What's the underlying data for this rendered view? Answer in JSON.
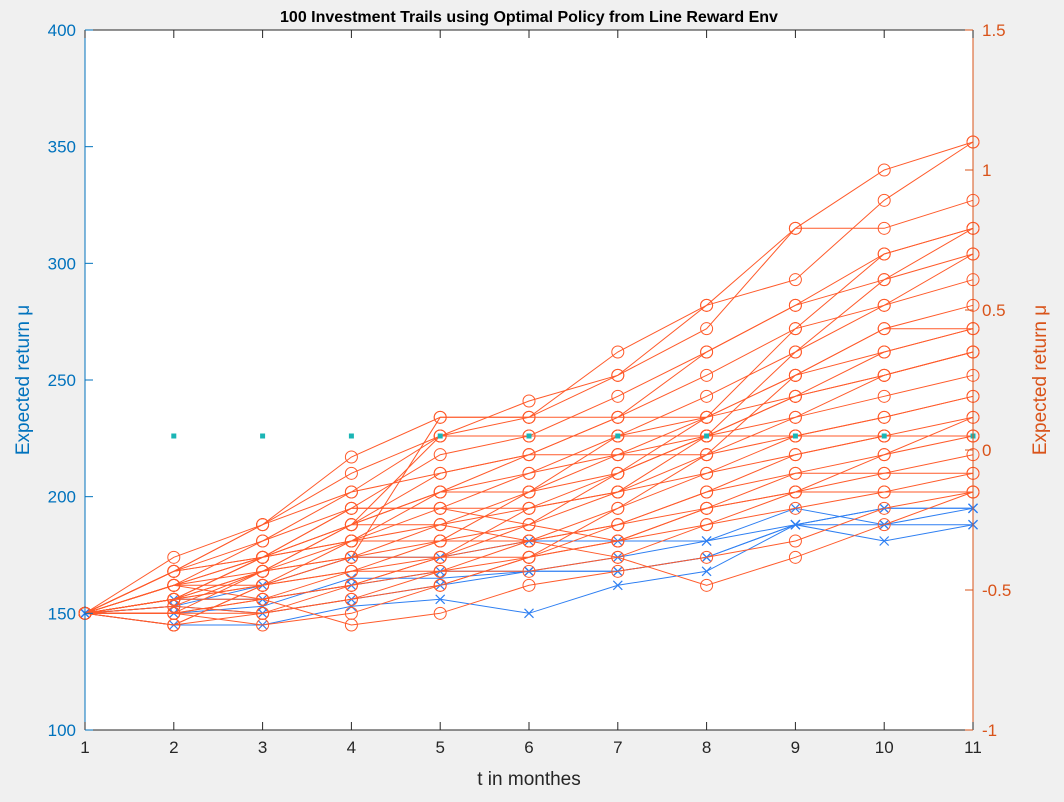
{
  "chart_data": {
    "type": "line",
    "title": "100 Investment Trails using Optimal Policy from Line Reward Env",
    "xlabel": "t in monthes",
    "ylabel_left": "Expected return μ",
    "ylabel_right": "Expected return μ",
    "xlim": [
      1,
      11
    ],
    "ylim_left": [
      100,
      400
    ],
    "ylim_right": [
      -1,
      1.5
    ],
    "x_ticks": [
      "1",
      "2",
      "3",
      "4",
      "5",
      "6",
      "7",
      "8",
      "9",
      "10",
      "11"
    ],
    "y_left_ticks": [
      "100",
      "150",
      "200",
      "250",
      "300",
      "350",
      "400"
    ],
    "y_right_ticks": [
      "-1",
      "-0.5",
      "0",
      "0.5",
      "1",
      "1.5"
    ],
    "colors": {
      "left_axis": "#0072bd",
      "right_axis": "#d95319",
      "red_series": "#ff5a2a",
      "blue_series": "#2e7ff2",
      "teal_markers": "#1ab5b5"
    },
    "series": [
      {
        "marker": "x",
        "color": "blue",
        "y": [
          150,
          153,
          150,
          156,
          162,
          168,
          168,
          174,
          188,
          195,
          195
        ]
      },
      {
        "marker": "x",
        "color": "blue",
        "y": [
          150,
          145,
          145,
          153,
          156,
          150,
          162,
          168,
          188,
          181,
          188
        ]
      },
      {
        "marker": "x",
        "color": "blue",
        "y": [
          150,
          156,
          156,
          162,
          168,
          168,
          168,
          174,
          188,
          188,
          188
        ]
      },
      {
        "marker": "x",
        "color": "blue",
        "y": [
          150,
          150,
          153,
          165,
          165,
          168,
          174,
          181,
          188,
          195,
          195
        ]
      },
      {
        "marker": "x",
        "color": "blue",
        "y": [
          150,
          153,
          162,
          174,
          174,
          181,
          181,
          181,
          195,
          188,
          195
        ]
      },
      {
        "marker": "o",
        "color": "red",
        "y": [
          150,
          174,
          188,
          217,
          234,
          234,
          262,
          282,
          315,
          340,
          352
        ]
      },
      {
        "marker": "o",
        "color": "red",
        "y": [
          150,
          168,
          188,
          210,
          226,
          241,
          252,
          282,
          293,
          327,
          352
        ]
      },
      {
        "marker": "o",
        "color": "red",
        "y": [
          150,
          162,
          181,
          202,
          226,
          234,
          252,
          272,
          315,
          315,
          327
        ]
      },
      {
        "marker": "o",
        "color": "red",
        "y": [
          150,
          156,
          174,
          195,
          218,
          226,
          243,
          262,
          282,
          304,
          315
        ]
      },
      {
        "marker": "o",
        "color": "red",
        "y": [
          150,
          150,
          168,
          188,
          210,
          218,
          234,
          262,
          282,
          293,
          315
        ]
      },
      {
        "marker": "o",
        "color": "red",
        "y": [
          150,
          145,
          162,
          181,
          202,
          218,
          234,
          252,
          272,
          282,
          304
        ]
      },
      {
        "marker": "o",
        "color": "red",
        "y": [
          150,
          156,
          168,
          181,
          195,
          210,
          226,
          243,
          262,
          282,
          293
        ]
      },
      {
        "marker": "o",
        "color": "red",
        "y": [
          150,
          162,
          168,
          174,
          188,
          202,
          226,
          234,
          252,
          272,
          282
        ]
      },
      {
        "marker": "o",
        "color": "red",
        "y": [
          150,
          150,
          156,
          168,
          181,
          202,
          218,
          234,
          252,
          262,
          272
        ]
      },
      {
        "marker": "o",
        "color": "red",
        "y": [
          150,
          156,
          162,
          168,
          174,
          195,
          210,
          226,
          243,
          262,
          272
        ]
      },
      {
        "marker": "o",
        "color": "red",
        "y": [
          150,
          145,
          150,
          162,
          174,
          188,
          210,
          226,
          234,
          252,
          262
        ]
      },
      {
        "marker": "o",
        "color": "red",
        "y": [
          150,
          162,
          174,
          188,
          202,
          210,
          218,
          226,
          243,
          252,
          262
        ]
      },
      {
        "marker": "o",
        "color": "red",
        "y": [
          150,
          168,
          174,
          181,
          188,
          195,
          202,
          218,
          234,
          243,
          252
        ]
      },
      {
        "marker": "o",
        "color": "red",
        "y": [
          150,
          156,
          156,
          162,
          168,
          181,
          195,
          210,
          226,
          234,
          243
        ]
      },
      {
        "marker": "o",
        "color": "red",
        "y": [
          150,
          150,
          145,
          150,
          162,
          174,
          188,
          202,
          218,
          226,
          234
        ]
      },
      {
        "marker": "o",
        "color": "red",
        "y": [
          150,
          153,
          150,
          156,
          168,
          174,
          181,
          195,
          210,
          218,
          226
        ]
      },
      {
        "marker": "o",
        "color": "red",
        "y": [
          150,
          162,
          156,
          162,
          174,
          181,
          188,
          195,
          202,
          210,
          218
        ]
      },
      {
        "marker": "o",
        "color": "red",
        "y": [
          150,
          168,
          181,
          195,
          195,
          188,
          181,
          188,
          195,
          202,
          210
        ]
      },
      {
        "marker": "o",
        "color": "red",
        "y": [
          150,
          150,
          156,
          145,
          150,
          162,
          168,
          174,
          181,
          195,
          202
        ]
      },
      {
        "marker": "o",
        "color": "red",
        "y": [
          150,
          156,
          174,
          188,
          188,
          181,
          174,
          162,
          174,
          188,
          202
        ]
      },
      {
        "marker": "o",
        "color": "red",
        "y": [
          150,
          162,
          174,
          188,
          226,
          226,
          226,
          226,
          226,
          226,
          226
        ]
      },
      {
        "marker": "o",
        "color": "red",
        "y": [
          150,
          156,
          162,
          174,
          234,
          234,
          234,
          234,
          243,
          252,
          262
        ]
      },
      {
        "marker": "o",
        "color": "red",
        "y": [
          150,
          168,
          188,
          202,
          210,
          218,
          218,
          218,
          226,
          234,
          243
        ]
      },
      {
        "marker": "o",
        "color": "red",
        "y": [
          150,
          145,
          162,
          174,
          181,
          188,
          202,
          226,
          262,
          293,
          304
        ]
      },
      {
        "marker": "o",
        "color": "red",
        "y": [
          150,
          153,
          168,
          188,
          202,
          202,
          210,
          234,
          272,
          304,
          315
        ]
      },
      {
        "marker": "o",
        "color": "red",
        "y": [
          150,
          156,
          174,
          195,
          195,
          195,
          202,
          210,
          218,
          226,
          226
        ]
      },
      {
        "marker": "o",
        "color": "red",
        "y": [
          150,
          162,
          162,
          168,
          168,
          168,
          174,
          188,
          202,
          218,
          234
        ]
      },
      {
        "marker": "o",
        "color": "red",
        "y": [
          150,
          150,
          150,
          156,
          162,
          174,
          195,
          218,
          252,
          272,
          272
        ]
      },
      {
        "marker": "o",
        "color": "red",
        "y": [
          150,
          168,
          174,
          181,
          181,
          181,
          188,
          202,
          210,
          210,
          210
        ]
      },
      {
        "marker": "o",
        "color": "red",
        "y": [
          150,
          156,
          168,
          174,
          174,
          174,
          181,
          195,
          202,
          202,
          202
        ]
      }
    ],
    "teal_markers": {
      "x": [
        2,
        3,
        4,
        5,
        6,
        7,
        8,
        9,
        10,
        11
      ],
      "y": [
        226,
        226,
        226,
        226,
        226,
        226,
        226,
        226,
        226,
        226
      ]
    }
  }
}
